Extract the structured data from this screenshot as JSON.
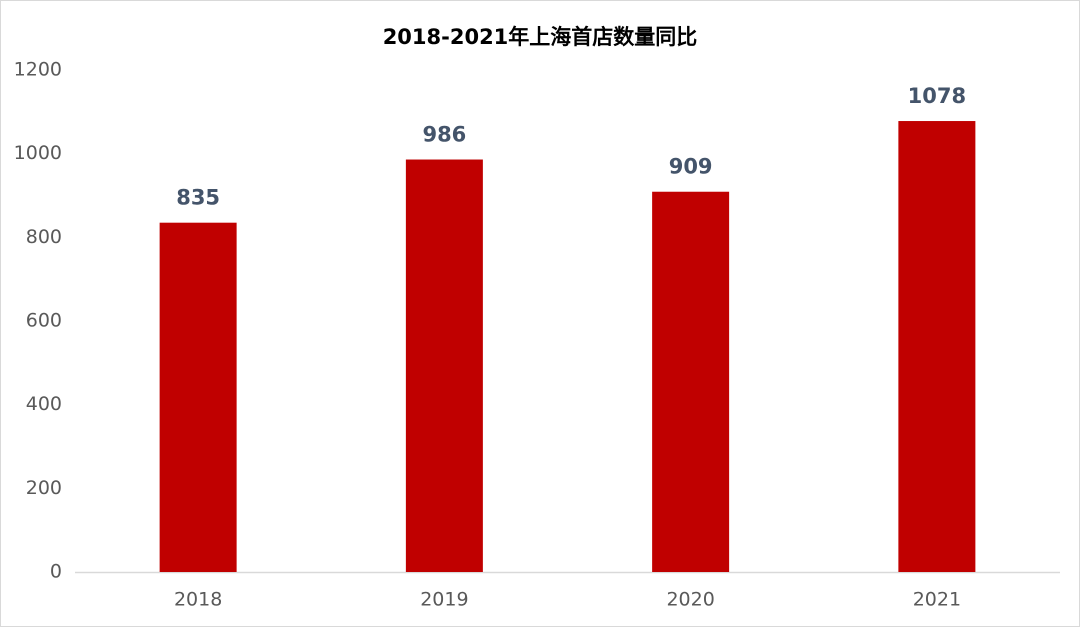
{
  "chart_data": {
    "type": "bar",
    "title": "2018-2021年上海首店数量同比",
    "categories": [
      "2018",
      "2019",
      "2020",
      "2021"
    ],
    "values": [
      835,
      986,
      909,
      1078
    ],
    "color": "#c00000",
    "ylim": [
      0,
      1200
    ],
    "yticks": [
      0,
      200,
      400,
      600,
      800,
      1000,
      1200
    ],
    "grid": false
  }
}
